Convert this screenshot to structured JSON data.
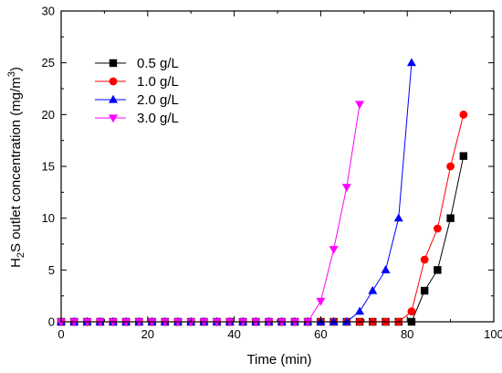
{
  "chart_data": {
    "type": "line",
    "xlabel": "Time (min)",
    "ylabel": {
      "parts": [
        "H",
        "2",
        "S outlet concentration (mg/m",
        "3",
        ")"
      ]
    },
    "xlim": [
      0,
      100
    ],
    "ylim": [
      0,
      30
    ],
    "xticks": [
      0,
      20,
      40,
      60,
      80,
      100
    ],
    "yticks": [
      0,
      5,
      10,
      15,
      20,
      25,
      30
    ],
    "grid": false,
    "legend_position": "top-left",
    "series": [
      {
        "name": "0.5 g/L",
        "color": "#000000",
        "marker": "square",
        "x": [
          0,
          3,
          6,
          9,
          12,
          15,
          18,
          21,
          24,
          27,
          30,
          33,
          36,
          39,
          42,
          45,
          48,
          51,
          54,
          57,
          60,
          63,
          66,
          69,
          72,
          75,
          78,
          81,
          84,
          87,
          90,
          93
        ],
        "y": [
          0,
          0,
          0,
          0,
          0,
          0,
          0,
          0,
          0,
          0,
          0,
          0,
          0,
          0,
          0,
          0,
          0,
          0,
          0,
          0,
          0,
          0,
          0,
          0,
          0,
          0,
          0,
          0,
          3,
          5,
          10,
          16
        ]
      },
      {
        "name": "1.0 g/L",
        "color": "#ff0000",
        "marker": "circle",
        "x": [
          0,
          3,
          6,
          9,
          12,
          15,
          18,
          21,
          24,
          27,
          30,
          33,
          36,
          39,
          42,
          45,
          48,
          51,
          54,
          57,
          60,
          63,
          66,
          69,
          72,
          75,
          78,
          81,
          84,
          87,
          90,
          93
        ],
        "y": [
          0,
          0,
          0,
          0,
          0,
          0,
          0,
          0,
          0,
          0,
          0,
          0,
          0,
          0,
          0,
          0,
          0,
          0,
          0,
          0,
          0,
          0,
          0,
          0,
          0,
          0,
          0,
          1,
          6,
          9,
          15,
          20
        ]
      },
      {
        "name": "2.0 g/L",
        "color": "#0000ff",
        "marker": "triangle-up",
        "x": [
          0,
          3,
          6,
          9,
          12,
          15,
          18,
          21,
          24,
          27,
          30,
          33,
          36,
          39,
          42,
          45,
          48,
          51,
          54,
          57,
          60,
          63,
          66,
          69,
          72,
          75,
          78,
          81
        ],
        "y": [
          0,
          0,
          0,
          0,
          0,
          0,
          0,
          0,
          0,
          0,
          0,
          0,
          0,
          0,
          0,
          0,
          0,
          0,
          0,
          0,
          0,
          0,
          0,
          1,
          3,
          5,
          10,
          25
        ]
      },
      {
        "name": "3.0 g/L",
        "color": "#ff00ff",
        "marker": "triangle-down",
        "x": [
          0,
          3,
          6,
          9,
          12,
          15,
          18,
          21,
          24,
          27,
          30,
          33,
          36,
          39,
          42,
          45,
          48,
          51,
          54,
          57,
          60,
          63,
          66,
          69
        ],
        "y": [
          0,
          0,
          0,
          0,
          0,
          0,
          0,
          0,
          0,
          0,
          0,
          0,
          0,
          0,
          0,
          0,
          0,
          0,
          0,
          0,
          2,
          7,
          13,
          21
        ]
      }
    ]
  }
}
